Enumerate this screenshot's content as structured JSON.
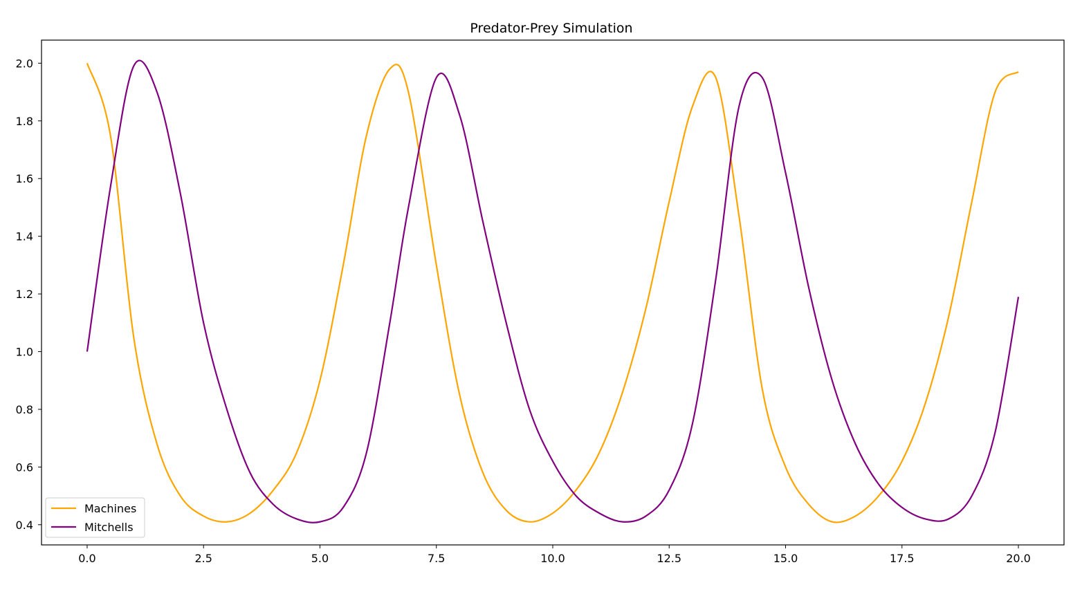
{
  "chart_data": {
    "type": "line",
    "title": "Predator-Prey Simulation",
    "xlabel": "",
    "ylabel": "",
    "xlim": [
      -0.98,
      20.98
    ],
    "ylim": [
      0.33,
      2.08
    ],
    "xticks": [
      0,
      2.5,
      5,
      7.5,
      10,
      12.5,
      15,
      17.5,
      20
    ],
    "xtick_labels": [
      "0.0",
      "2.5",
      "5.0",
      "7.5",
      "10.0",
      "12.5",
      "15.0",
      "17.5",
      "20.0"
    ],
    "yticks": [
      0.4,
      0.6,
      0.8,
      1.0,
      1.2,
      1.4,
      1.6,
      1.8,
      2.0
    ],
    "ytick_labels": [
      "0.4",
      "0.6",
      "0.8",
      "1.0",
      "1.2",
      "1.4",
      "1.6",
      "1.8",
      "2.0"
    ],
    "grid": false,
    "legend": {
      "position": "lower-left"
    },
    "x": [
      0.0,
      0.5,
      1.0,
      1.5,
      2.0,
      2.5,
      3.0,
      3.5,
      4.0,
      4.5,
      5.0,
      5.5,
      6.0,
      6.5,
      6.9,
      7.5,
      8.0,
      8.5,
      9.0,
      9.5,
      10.0,
      10.5,
      11.0,
      11.5,
      12.0,
      12.5,
      13.0,
      13.5,
      14.0,
      14.5,
      15.0,
      15.5,
      16.0,
      16.5,
      17.0,
      17.5,
      18.0,
      18.5,
      19.0,
      19.5,
      20.0
    ],
    "series": [
      {
        "name": "Machines",
        "color": "#ffa500",
        "values": [
          2.0,
          1.75,
          1.05,
          0.68,
          0.5,
          0.43,
          0.41,
          0.44,
          0.52,
          0.65,
          0.9,
          1.3,
          1.75,
          1.98,
          1.9,
          1.3,
          0.85,
          0.58,
          0.45,
          0.41,
          0.44,
          0.52,
          0.65,
          0.86,
          1.15,
          1.52,
          1.85,
          1.95,
          1.47,
          0.87,
          0.6,
          0.47,
          0.41,
          0.43,
          0.5,
          0.62,
          0.82,
          1.12,
          1.52,
          1.9,
          1.97
        ]
      },
      {
        "name": "Mitchells",
        "color": "#800080",
        "values": [
          1.0,
          1.57,
          1.99,
          1.9,
          1.55,
          1.1,
          0.8,
          0.58,
          0.47,
          0.42,
          0.41,
          0.46,
          0.65,
          1.1,
          1.5,
          1.95,
          1.82,
          1.45,
          1.1,
          0.8,
          0.62,
          0.5,
          0.44,
          0.41,
          0.43,
          0.52,
          0.75,
          1.25,
          1.85,
          1.95,
          1.62,
          1.22,
          0.9,
          0.68,
          0.54,
          0.46,
          0.42,
          0.42,
          0.5,
          0.72,
          1.19
        ]
      }
    ]
  }
}
